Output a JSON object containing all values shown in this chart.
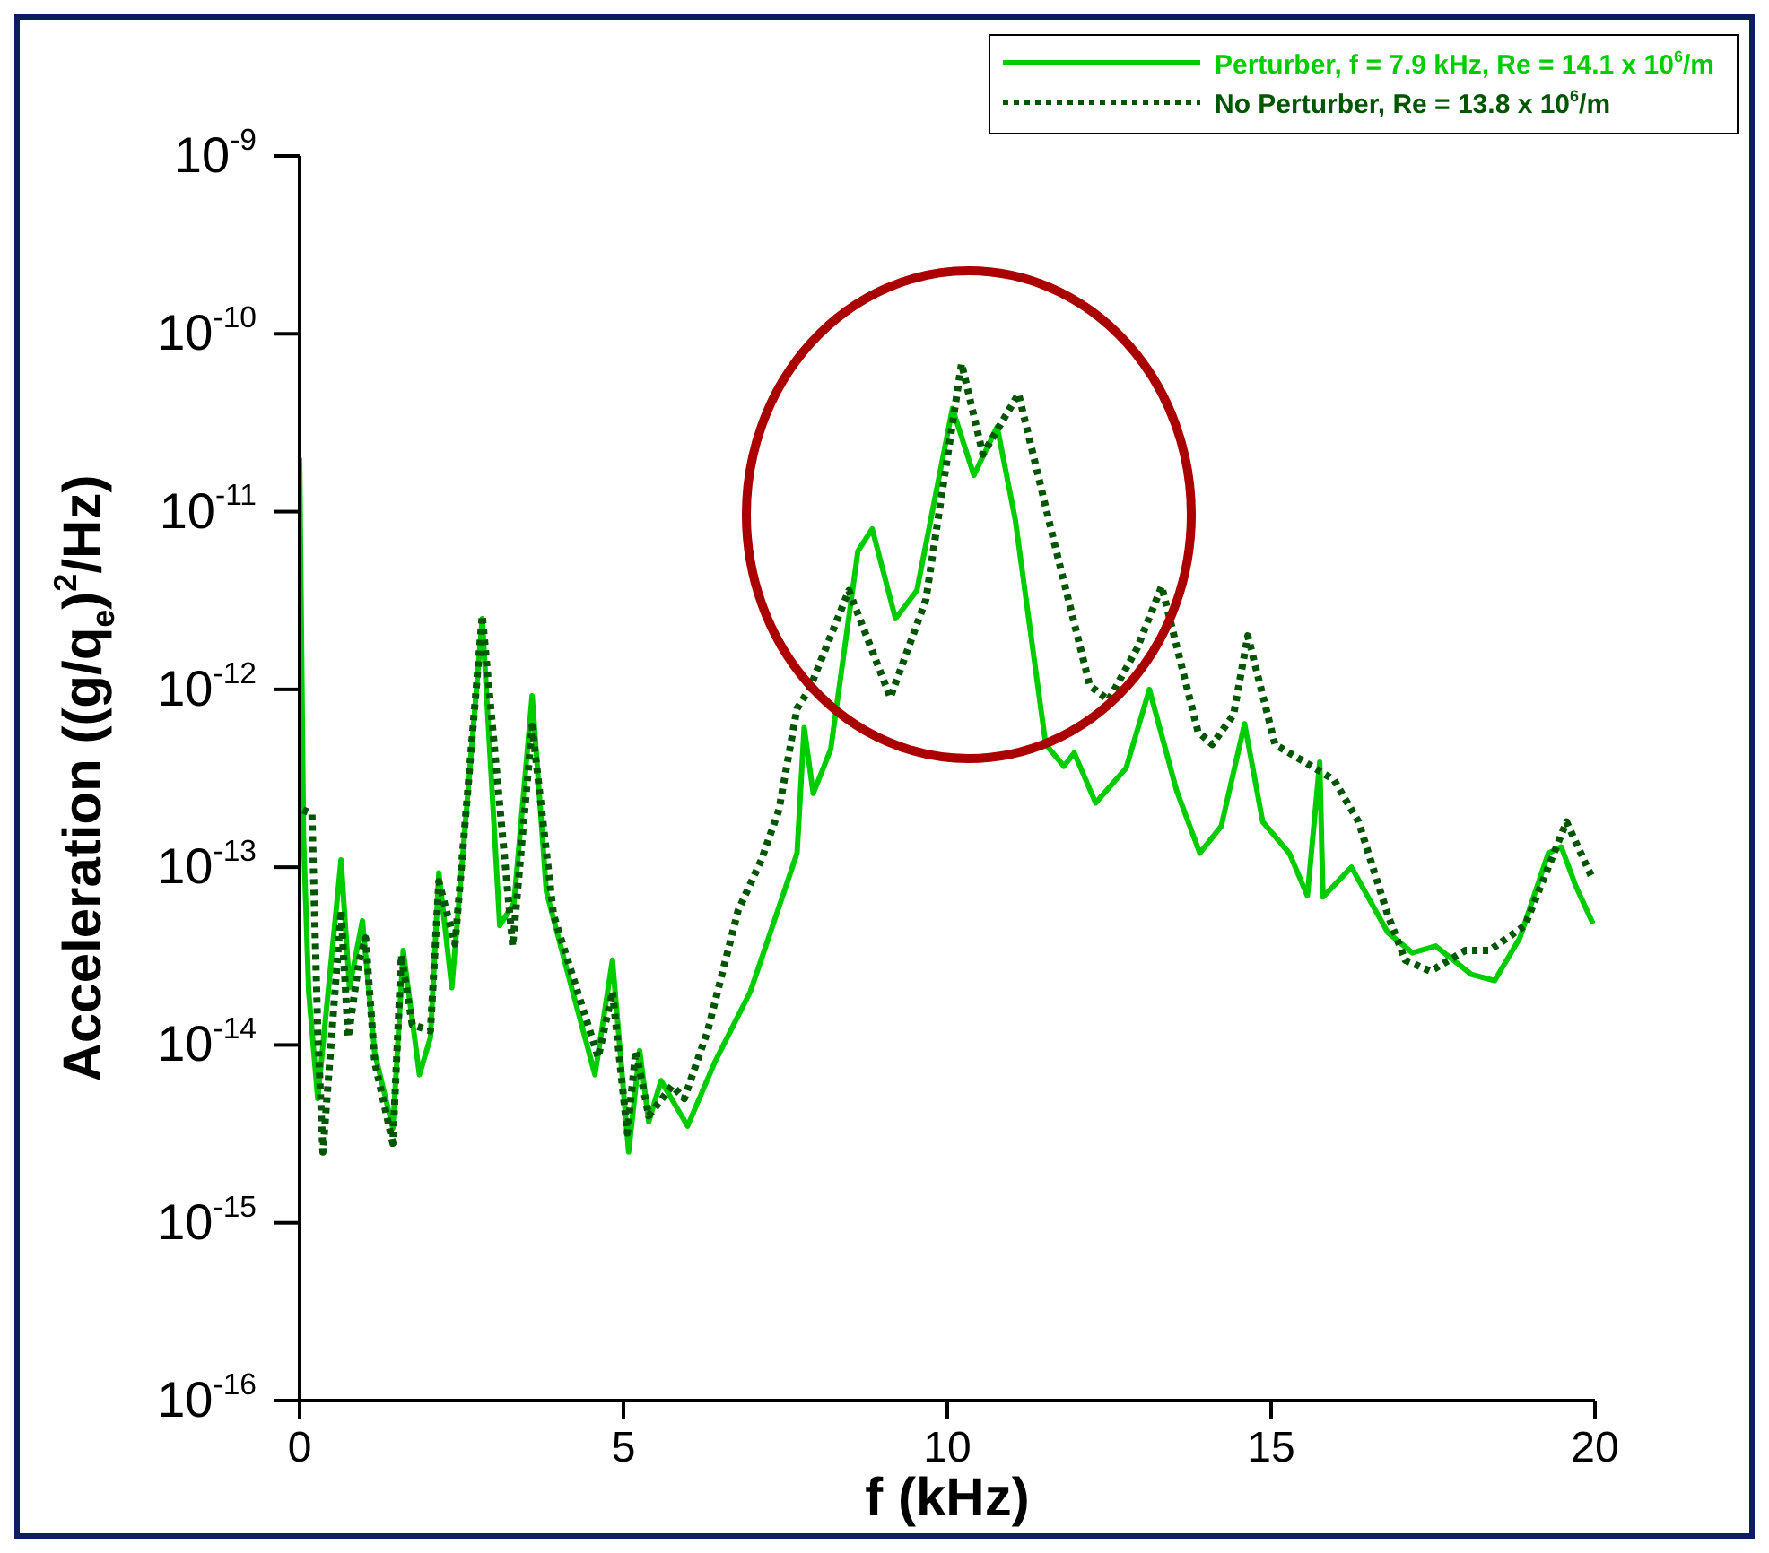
{
  "chart_data": {
    "type": "line",
    "xlabel": "f (kHz)",
    "ylabel": "Acceleration ((g/q$_{e}$)$^{2}$/Hz)",
    "log": "y",
    "grid": false,
    "legend": "top right",
    "xlim": [
      0,
      20
    ],
    "xticks": [
      0,
      5,
      10,
      15,
      20
    ],
    "ylim": [
      1e-16,
      1e-09
    ],
    "yticks": [
      {
        "value": 1e-16,
        "label": "10$^{-16}$"
      },
      {
        "value": 1e-15,
        "label": "10$^{-15}$"
      },
      {
        "value": 1e-14,
        "label": "10$^{-14}$"
      },
      {
        "value": 1e-13,
        "label": "10$^{-13}$"
      },
      {
        "value": 1e-12,
        "label": "10$^{-12}$"
      },
      {
        "value": 1e-11,
        "label": "10$^{-11}$"
      },
      {
        "value": 1e-10,
        "label": "10$^{-10}$"
      },
      {
        "value": 1e-09,
        "label": "10$^{-9}$"
      }
    ],
    "series": [
      {
        "name": "Perturber, f = 7.9 kHz, Re = 14.1 x 10$^{6}$/m",
        "color": "#00cc00",
        "line_style": "solid",
        "x": [
          0,
          0.06,
          0.14,
          0.28,
          0.64,
          0.77,
          0.97,
          1.16,
          1.44,
          1.6,
          1.85,
          2.02,
          2.15,
          2.35,
          2.82,
          3.09,
          3.31,
          3.59,
          3.81,
          4.2,
          4.56,
          4.83,
          5.08,
          5.25,
          5.39,
          5.58,
          5.99,
          6.41,
          6.96,
          7.24,
          7.68,
          7.79,
          7.93,
          8.2,
          8.62,
          8.84,
          9.2,
          9.53,
          10.08,
          10.41,
          10.77,
          11.05,
          11.52,
          11.8,
          11.96,
          12.29,
          12.76,
          13.12,
          13.54,
          13.9,
          14.23,
          14.59,
          14.87,
          15.28,
          15.56,
          15.75,
          15.8,
          16.24,
          16.8,
          17.18,
          17.54,
          18.09,
          18.45,
          18.84,
          19.28,
          19.48,
          19.7,
          19.97
        ],
        "values": [
          2e-11,
          1.5e-13,
          2e-14,
          5e-15,
          1.1e-13,
          2.1e-14,
          5e-14,
          9e-15,
          3.4e-15,
          3.4e-14,
          6.8e-15,
          1.1e-14,
          9.3e-14,
          2.1e-14,
          2.5e-12,
          4.7e-14,
          6.3e-14,
          9.2e-13,
          7.3e-14,
          2.1e-14,
          6.8e-15,
          3e-14,
          2.5e-15,
          9.3e-15,
          3.7e-15,
          6.3e-15,
          3.5e-15,
          8e-15,
          2e-14,
          4e-14,
          1.2e-13,
          6.1e-13,
          2.6e-13,
          4.6e-13,
          6e-12,
          8e-12,
          2.5e-12,
          3.6e-12,
          3.8e-11,
          1.6e-11,
          3e-11,
          9e-12,
          4.9e-13,
          3.7e-13,
          4.4e-13,
          2.3e-13,
          3.6e-13,
          1e-12,
          2.7e-13,
          1.2e-13,
          1.7e-13,
          6.4e-13,
          1.8e-13,
          1.2e-13,
          6.9e-14,
          3.9e-13,
          6.8e-14,
          1e-13,
          4.3e-14,
          3.3e-14,
          3.6e-14,
          2.5e-14,
          2.3e-14,
          4e-14,
          1.2e-13,
          1.3e-13,
          7.9e-14,
          4.8e-14
        ]
      },
      {
        "name": "No Perturber, Re = 13.8 x 10$^{6}$/m",
        "color": "#005500",
        "line_style": "dotted",
        "x": [
          0.05,
          0.19,
          0.28,
          0.36,
          0.5,
          0.64,
          0.75,
          0.92,
          1.02,
          1.16,
          1.44,
          1.57,
          1.74,
          2.02,
          2.15,
          2.4,
          2.82,
          3.29,
          3.59,
          3.92,
          4.61,
          4.83,
          5.06,
          5.19,
          5.39,
          5.75,
          5.94,
          6.3,
          6.77,
          7.13,
          7.4,
          7.68,
          7.87,
          8.48,
          9.12,
          9.67,
          10.22,
          10.55,
          11.1,
          11.66,
          12.2,
          12.49,
          12.93,
          13.31,
          13.87,
          14.09,
          14.42,
          14.64,
          15.06,
          15.52,
          15.97,
          16.35,
          16.8,
          17.07,
          17.46,
          18.0,
          18.37,
          18.92,
          19.56,
          19.97
        ],
        "values": [
          2.1e-13,
          2e-13,
          1.2e-14,
          2.5e-15,
          1.2e-14,
          5.7e-14,
          1.1e-14,
          3e-14,
          4e-14,
          8e-15,
          2.8e-15,
          3.2e-14,
          1.3e-14,
          1.2e-14,
          8.3e-14,
          3.7e-14,
          2.6e-12,
          3.6e-14,
          6.2e-13,
          5.4e-14,
          8.5e-15,
          2e-14,
          3.2e-15,
          9.3e-15,
          4e-15,
          5.9e-15,
          5e-15,
          1.2e-14,
          5.7e-14,
          1.1e-13,
          2.1e-13,
          7.8e-13,
          1e-12,
          3.6e-12,
          9e-13,
          3.2e-12,
          6.8e-11,
          2.1e-11,
          4.6e-11,
          6.5e-12,
          1.05e-12,
          8.7e-13,
          1.7e-12,
          3.8e-12,
          5.8e-13,
          4.9e-13,
          7.2e-13,
          2e-12,
          4.9e-13,
          3.9e-13,
          3.1e-13,
          1.8e-13,
          5.4e-14,
          3e-14,
          2.6e-14,
          3.4e-14,
          3.4e-14,
          4.7e-14,
          1.8e-13,
          8.5e-14
        ]
      }
    ]
  }
}
